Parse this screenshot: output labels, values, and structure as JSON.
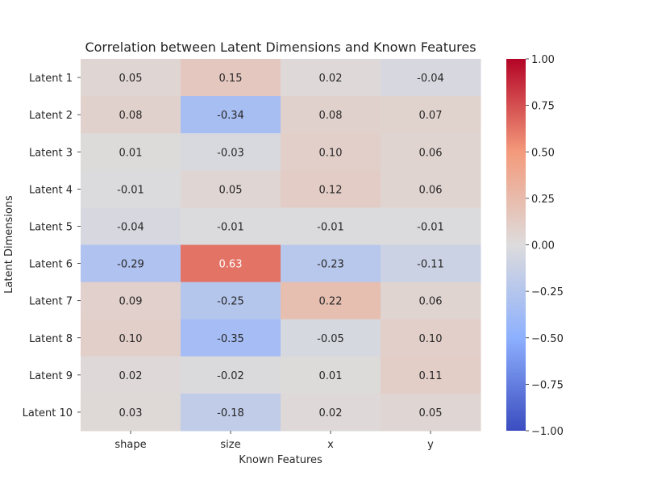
{
  "chart_data": {
    "type": "heatmap",
    "title": "Correlation between Latent Dimensions and Known Features",
    "xlabel": "Known Features",
    "ylabel": "Latent Dimensions",
    "columns": [
      "shape",
      "size",
      "x",
      "y"
    ],
    "rows": [
      "Latent 1",
      "Latent 2",
      "Latent 3",
      "Latent 4",
      "Latent 5",
      "Latent 6",
      "Latent 7",
      "Latent 8",
      "Latent 9",
      "Latent 10"
    ],
    "values": [
      [
        0.05,
        0.15,
        0.02,
        -0.04
      ],
      [
        0.08,
        -0.34,
        0.08,
        0.07
      ],
      [
        0.01,
        -0.03,
        0.1,
        0.06
      ],
      [
        -0.01,
        0.05,
        0.12,
        0.06
      ],
      [
        -0.04,
        -0.01,
        -0.01,
        -0.01
      ],
      [
        -0.29,
        0.63,
        -0.23,
        -0.11
      ],
      [
        0.09,
        -0.25,
        0.22,
        0.06
      ],
      [
        0.1,
        -0.35,
        -0.05,
        0.1
      ],
      [
        0.02,
        -0.02,
        0.01,
        0.11
      ],
      [
        0.03,
        -0.18,
        0.02,
        0.05
      ]
    ],
    "annotations": [
      [
        "0.05",
        "0.15",
        "0.02",
        "-0.04"
      ],
      [
        "0.08",
        "-0.34",
        "0.08",
        "0.07"
      ],
      [
        "0.01",
        "-0.03",
        "0.10",
        "0.06"
      ],
      [
        "-0.01",
        "0.05",
        "0.12",
        "0.06"
      ],
      [
        "-0.04",
        "-0.01",
        "-0.01",
        "-0.01"
      ],
      [
        "-0.29",
        "0.63",
        "-0.23",
        "-0.11"
      ],
      [
        "0.09",
        "-0.25",
        "0.22",
        "0.06"
      ],
      [
        "0.10",
        "-0.35",
        "-0.05",
        "0.10"
      ],
      [
        "0.02",
        "-0.02",
        "0.01",
        "0.11"
      ],
      [
        "0.03",
        "-0.18",
        "0.02",
        "0.05"
      ]
    ],
    "colormap": "coolwarm",
    "vmin": -1.0,
    "vmax": 1.0,
    "colorbar_ticks": [
      1.0,
      0.75,
      0.5,
      0.25,
      0.0,
      -0.25,
      -0.5,
      -0.75,
      -1.0
    ],
    "colorbar_tick_labels": [
      "1.00",
      "0.75",
      "0.50",
      "0.25",
      "0.00",
      "−0.25",
      "−0.50",
      "−0.75",
      "−1.00"
    ]
  }
}
